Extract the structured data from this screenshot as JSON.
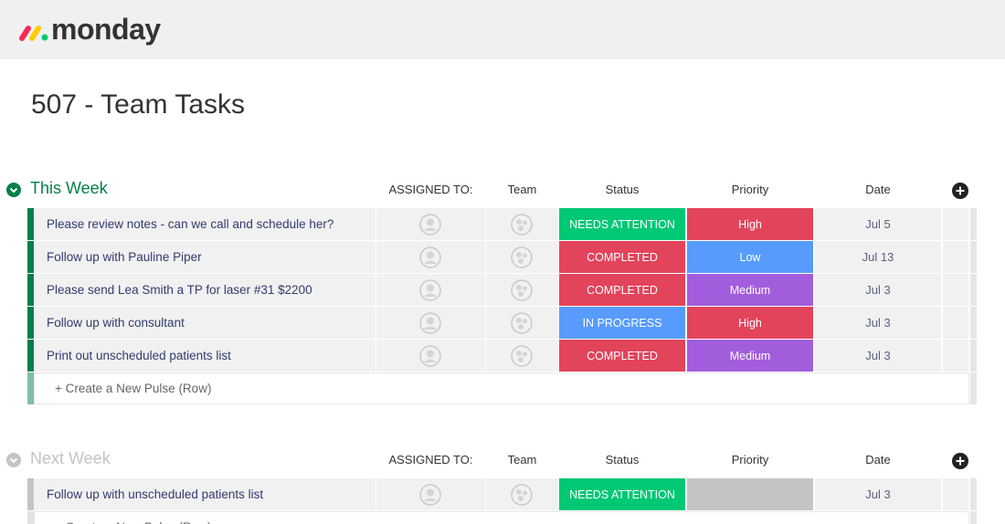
{
  "header": {
    "logo": "monday"
  },
  "board": {
    "title": "507 - Team Tasks"
  },
  "groups": [
    {
      "name": "This Week",
      "color": "#037f4c",
      "bar_color": "#037f4c",
      "columns": [
        "ASSIGNED TO:",
        "Team",
        "Status",
        "Priority",
        "Date"
      ],
      "rows": [
        {
          "task": "Please review notes - can we call and schedule her?",
          "status": {
            "text": "NEEDS ATTENTION",
            "color": "#00c875"
          },
          "priority": {
            "text": "High",
            "color": "#e2445c"
          },
          "date": "Jul 5"
        },
        {
          "task": "Follow up with Pauline Piper",
          "status": {
            "text": "COMPLETED",
            "color": "#e2445c"
          },
          "priority": {
            "text": "Low",
            "color": "#579bfc"
          },
          "date": "Jul 13"
        },
        {
          "task": "Please send Lea Smith a TP for laser #31 $2200",
          "status": {
            "text": "COMPLETED",
            "color": "#e2445c"
          },
          "priority": {
            "text": "Medium",
            "color": "#a25ddc"
          },
          "date": "Jul 3"
        },
        {
          "task": "Follow up with consultant",
          "status": {
            "text": "IN PROGRESS",
            "color": "#579bfc"
          },
          "priority": {
            "text": "High",
            "color": "#e2445c"
          },
          "date": "Jul 3"
        },
        {
          "task": "Print out unscheduled patients list",
          "status": {
            "text": "COMPLETED",
            "color": "#e2445c"
          },
          "priority": {
            "text": "Medium",
            "color": "#a25ddc"
          },
          "date": "Jul 3"
        }
      ],
      "create": "+ Create a New Pulse (Row)"
    },
    {
      "name": "Next Week",
      "color": "#c4c4c4",
      "bar_color": "#c4c4c4",
      "columns": [
        "ASSIGNED TO:",
        "Team",
        "Status",
        "Priority",
        "Date"
      ],
      "rows": [
        {
          "task": "Follow up with unscheduled patients list",
          "status": {
            "text": "NEEDS ATTENTION",
            "color": "#00c875"
          },
          "priority": {
            "color": "#c4c4c4"
          },
          "date": "Jul 3"
        }
      ],
      "create": "+ Create a New Pulse (Row)"
    }
  ]
}
